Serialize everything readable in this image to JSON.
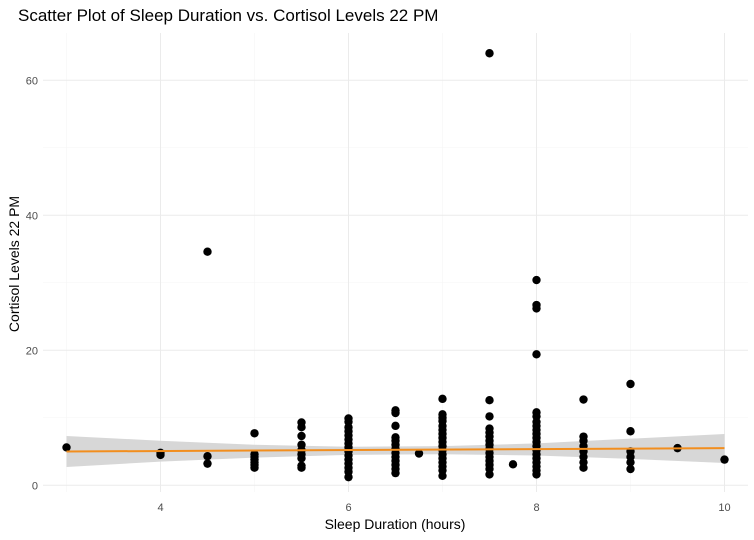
{
  "chart_data": {
    "type": "scatter",
    "title": "Scatter Plot of Sleep Duration vs. Cortisol Levels 22 PM",
    "xlabel": "Sleep Duration (hours)",
    "ylabel": "Cortisol Levels 22 PM",
    "xlim": [
      2.75,
      10.25
    ],
    "ylim": [
      -1.0,
      67.0
    ],
    "x_ticks": [
      4,
      6,
      8,
      10
    ],
    "y_ticks": [
      0,
      20,
      40,
      60
    ],
    "grid": true,
    "legend": "none",
    "point_color": "#000000",
    "trend_color": "#f28e1e",
    "band_color": "#d3d3d3",
    "points": [
      {
        "x": 3.0,
        "y": 5.6
      },
      {
        "x": 4.0,
        "y": 4.5
      },
      {
        "x": 4.0,
        "y": 4.8
      },
      {
        "x": 4.5,
        "y": 34.6
      },
      {
        "x": 4.5,
        "y": 3.2
      },
      {
        "x": 4.5,
        "y": 4.3
      },
      {
        "x": 5.0,
        "y": 7.7
      },
      {
        "x": 5.0,
        "y": 2.6
      },
      {
        "x": 5.0,
        "y": 3.0
      },
      {
        "x": 5.0,
        "y": 3.4
      },
      {
        "x": 5.0,
        "y": 3.8
      },
      {
        "x": 5.0,
        "y": 4.2
      },
      {
        "x": 5.0,
        "y": 4.6
      },
      {
        "x": 5.5,
        "y": 9.3
      },
      {
        "x": 5.5,
        "y": 8.6
      },
      {
        "x": 5.5,
        "y": 7.3
      },
      {
        "x": 5.5,
        "y": 6.0
      },
      {
        "x": 5.5,
        "y": 5.2
      },
      {
        "x": 5.5,
        "y": 4.6
      },
      {
        "x": 5.5,
        "y": 4.0
      },
      {
        "x": 5.5,
        "y": 2.9
      },
      {
        "x": 5.5,
        "y": 2.6
      },
      {
        "x": 6.0,
        "y": 9.9
      },
      {
        "x": 6.0,
        "y": 9.4
      },
      {
        "x": 6.0,
        "y": 8.6
      },
      {
        "x": 6.0,
        "y": 8.0
      },
      {
        "x": 6.0,
        "y": 7.4
      },
      {
        "x": 6.0,
        "y": 6.8
      },
      {
        "x": 6.0,
        "y": 6.2
      },
      {
        "x": 6.0,
        "y": 5.6
      },
      {
        "x": 6.0,
        "y": 5.0
      },
      {
        "x": 6.0,
        "y": 4.4
      },
      {
        "x": 6.0,
        "y": 3.8
      },
      {
        "x": 6.0,
        "y": 3.2
      },
      {
        "x": 6.0,
        "y": 2.6
      },
      {
        "x": 6.0,
        "y": 2.0
      },
      {
        "x": 6.0,
        "y": 1.2
      },
      {
        "x": 6.5,
        "y": 11.1
      },
      {
        "x": 6.5,
        "y": 10.7
      },
      {
        "x": 6.5,
        "y": 8.8
      },
      {
        "x": 6.5,
        "y": 7.1
      },
      {
        "x": 6.5,
        "y": 6.6
      },
      {
        "x": 6.5,
        "y": 6.0
      },
      {
        "x": 6.5,
        "y": 5.4
      },
      {
        "x": 6.5,
        "y": 4.8
      },
      {
        "x": 6.5,
        "y": 4.2
      },
      {
        "x": 6.5,
        "y": 3.6
      },
      {
        "x": 6.5,
        "y": 3.0
      },
      {
        "x": 6.5,
        "y": 2.4
      },
      {
        "x": 6.5,
        "y": 1.8
      },
      {
        "x": 6.75,
        "y": 4.7
      },
      {
        "x": 7.0,
        "y": 12.8
      },
      {
        "x": 7.0,
        "y": 10.5
      },
      {
        "x": 7.0,
        "y": 10.0
      },
      {
        "x": 7.0,
        "y": 9.5
      },
      {
        "x": 7.0,
        "y": 8.8
      },
      {
        "x": 7.0,
        "y": 8.2
      },
      {
        "x": 7.0,
        "y": 7.6
      },
      {
        "x": 7.0,
        "y": 7.0
      },
      {
        "x": 7.0,
        "y": 6.4
      },
      {
        "x": 7.0,
        "y": 5.8
      },
      {
        "x": 7.0,
        "y": 5.2
      },
      {
        "x": 7.0,
        "y": 4.6
      },
      {
        "x": 7.0,
        "y": 4.0
      },
      {
        "x": 7.0,
        "y": 3.4
      },
      {
        "x": 7.0,
        "y": 2.8
      },
      {
        "x": 7.0,
        "y": 2.2
      },
      {
        "x": 7.0,
        "y": 1.4
      },
      {
        "x": 7.5,
        "y": 64.0
      },
      {
        "x": 7.5,
        "y": 12.6
      },
      {
        "x": 7.5,
        "y": 10.2
      },
      {
        "x": 7.5,
        "y": 8.4
      },
      {
        "x": 7.5,
        "y": 7.8
      },
      {
        "x": 7.5,
        "y": 7.2
      },
      {
        "x": 7.5,
        "y": 6.6
      },
      {
        "x": 7.5,
        "y": 6.0
      },
      {
        "x": 7.5,
        "y": 5.4
      },
      {
        "x": 7.5,
        "y": 4.8
      },
      {
        "x": 7.5,
        "y": 4.2
      },
      {
        "x": 7.5,
        "y": 3.6
      },
      {
        "x": 7.5,
        "y": 3.0
      },
      {
        "x": 7.5,
        "y": 2.4
      },
      {
        "x": 7.5,
        "y": 1.6
      },
      {
        "x": 7.75,
        "y": 3.1
      },
      {
        "x": 8.0,
        "y": 30.4
      },
      {
        "x": 8.0,
        "y": 26.7
      },
      {
        "x": 8.0,
        "y": 26.2
      },
      {
        "x": 8.0,
        "y": 19.4
      },
      {
        "x": 8.0,
        "y": 10.8
      },
      {
        "x": 8.0,
        "y": 10.2
      },
      {
        "x": 8.0,
        "y": 9.4
      },
      {
        "x": 8.0,
        "y": 8.8
      },
      {
        "x": 8.0,
        "y": 8.2
      },
      {
        "x": 8.0,
        "y": 7.6
      },
      {
        "x": 8.0,
        "y": 7.0
      },
      {
        "x": 8.0,
        "y": 6.4
      },
      {
        "x": 8.0,
        "y": 5.8
      },
      {
        "x": 8.0,
        "y": 5.2
      },
      {
        "x": 8.0,
        "y": 4.6
      },
      {
        "x": 8.0,
        "y": 4.0
      },
      {
        "x": 8.0,
        "y": 3.4
      },
      {
        "x": 8.0,
        "y": 2.8
      },
      {
        "x": 8.0,
        "y": 2.2
      },
      {
        "x": 8.0,
        "y": 1.6
      },
      {
        "x": 8.5,
        "y": 12.7
      },
      {
        "x": 8.5,
        "y": 7.2
      },
      {
        "x": 8.5,
        "y": 6.6
      },
      {
        "x": 8.5,
        "y": 5.8
      },
      {
        "x": 8.5,
        "y": 5.0
      },
      {
        "x": 8.5,
        "y": 4.2
      },
      {
        "x": 8.5,
        "y": 3.4
      },
      {
        "x": 8.5,
        "y": 2.6
      },
      {
        "x": 9.0,
        "y": 15.0
      },
      {
        "x": 9.0,
        "y": 8.0
      },
      {
        "x": 9.0,
        "y": 5.0
      },
      {
        "x": 9.0,
        "y": 4.2
      },
      {
        "x": 9.0,
        "y": 3.4
      },
      {
        "x": 9.0,
        "y": 2.4
      },
      {
        "x": 9.5,
        "y": 5.5
      },
      {
        "x": 10.0,
        "y": 3.8
      }
    ],
    "trend_line": {
      "x": [
        3.0,
        10.0
      ],
      "y": [
        5.0,
        5.5
      ]
    },
    "confidence_band": {
      "x": [
        3.0,
        4.0,
        5.0,
        6.0,
        7.0,
        8.0,
        9.0,
        10.0
      ],
      "lower": [
        2.7,
        3.5,
        4.1,
        4.5,
        4.6,
        4.4,
        3.9,
        3.3
      ],
      "upper": [
        7.3,
        6.6,
        6.0,
        5.7,
        5.8,
        6.2,
        6.9,
        7.6
      ]
    }
  }
}
